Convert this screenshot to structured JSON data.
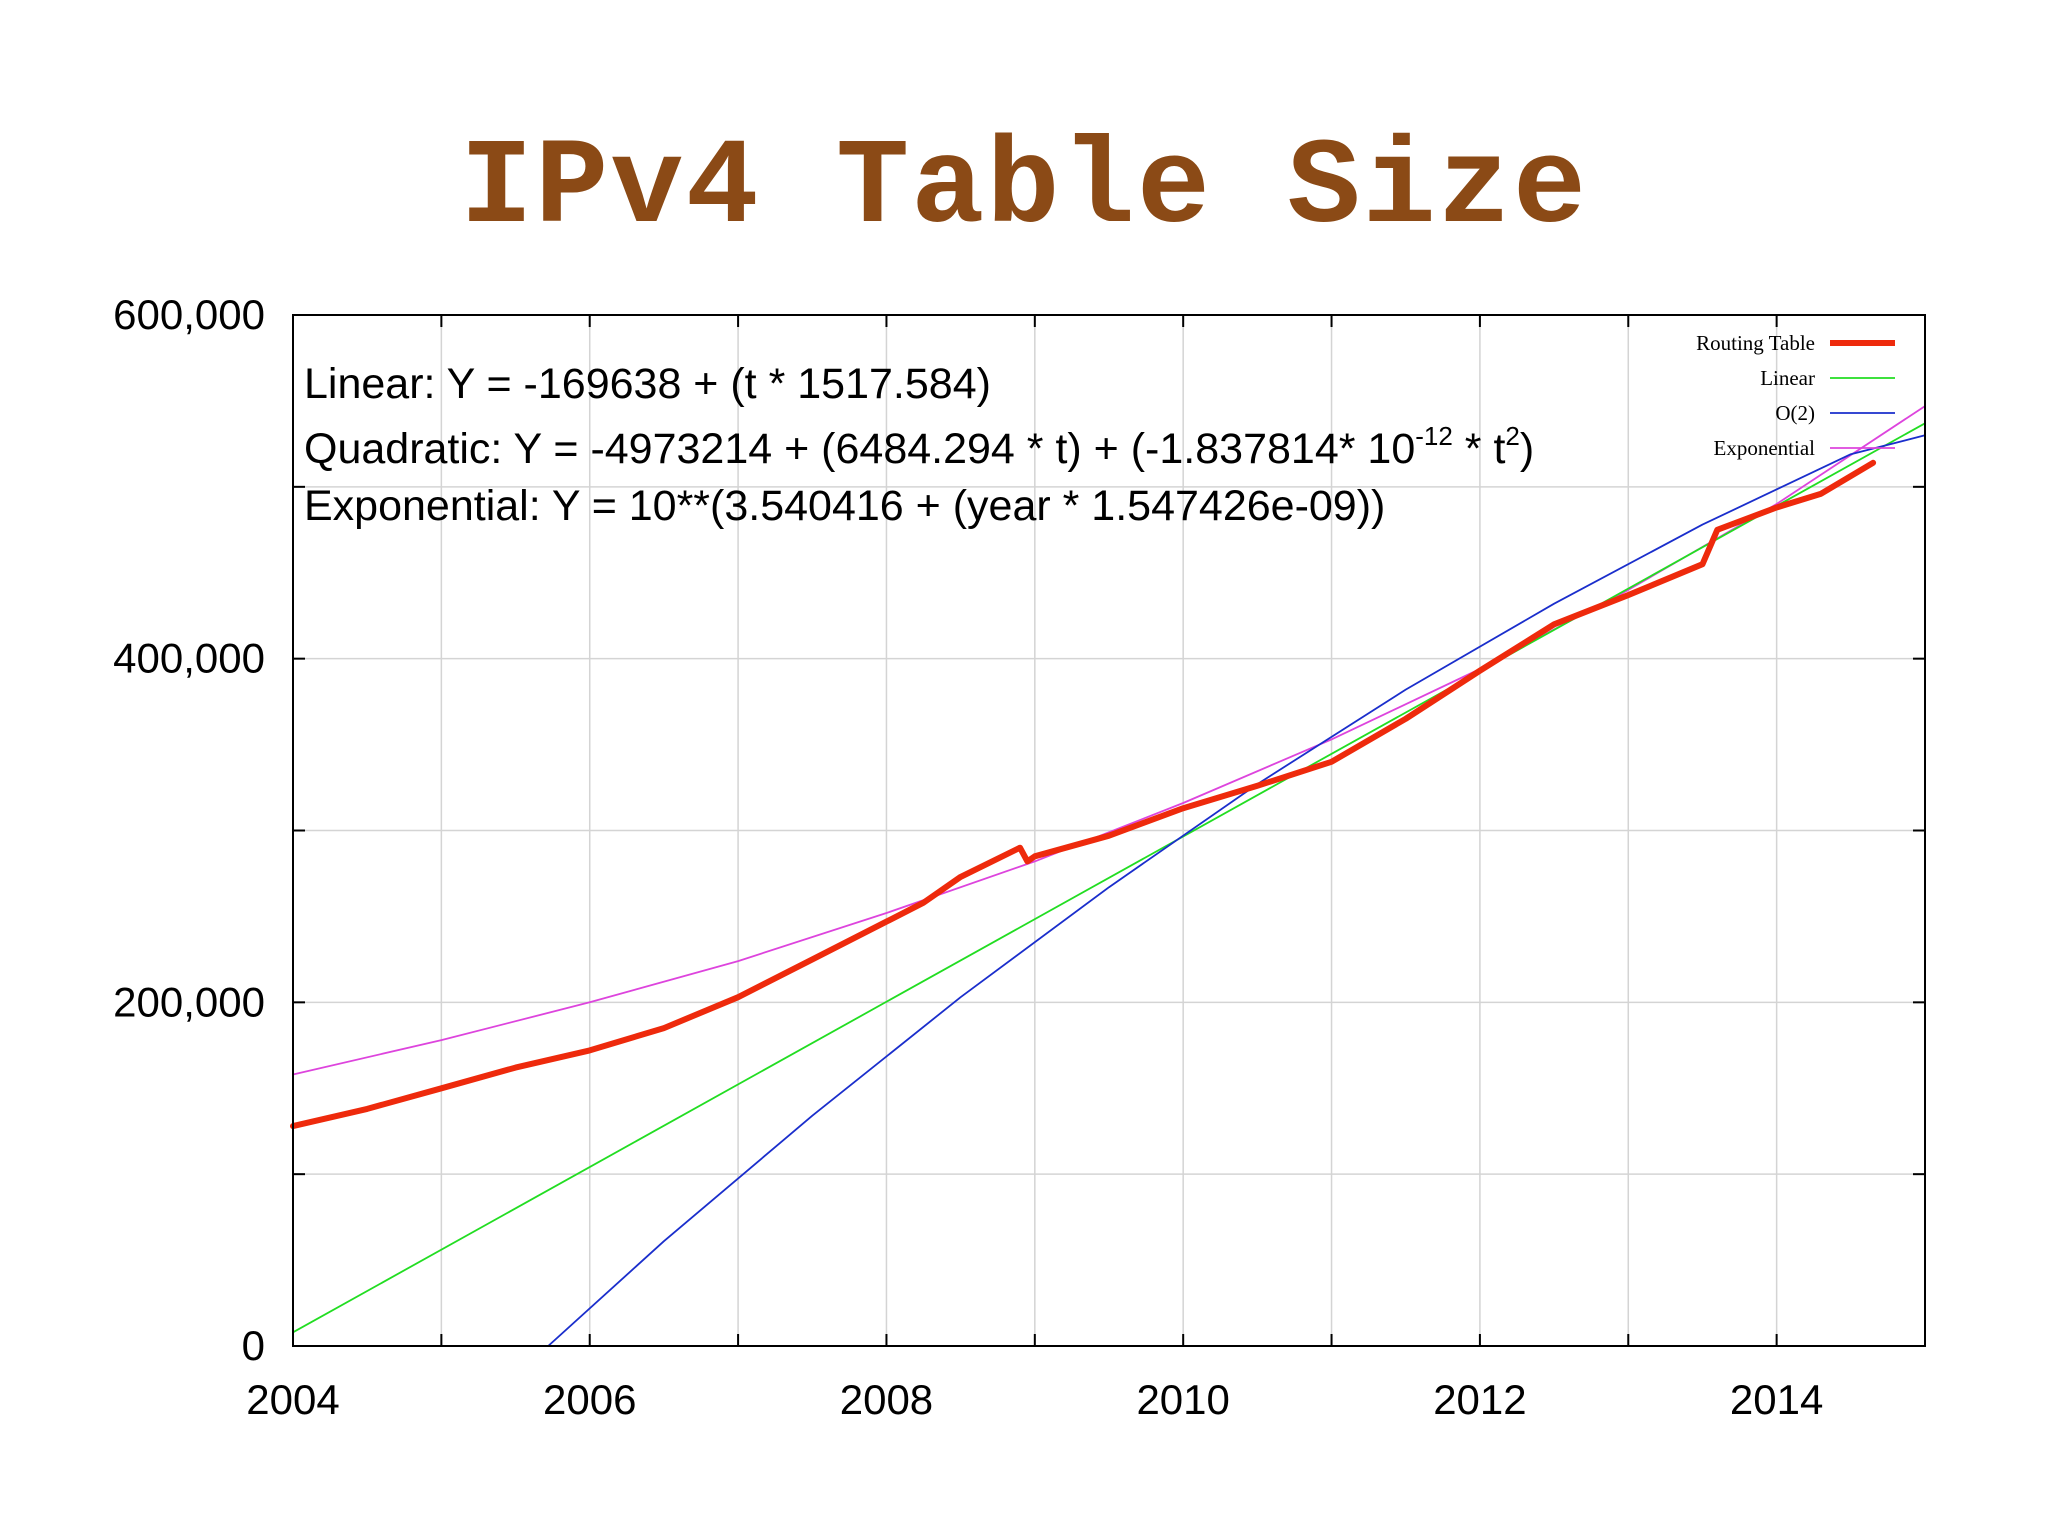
{
  "slide": {
    "title": "IPv4 Table Size"
  },
  "equations": {
    "linear": "Linear: Y = -169638 + (t * 1517.584)",
    "quadratic_main": "Quadratic: Y  = -4973214 + (6484.294 * t) + (-1.837814* 10",
    "quadratic_exp": "-12",
    "quadratic_mid": " * t",
    "quadratic_exp2": "2",
    "quadratic_end": ")",
    "exponential": "Exponential: Y = 10**(3.540416 + (year * 1.547426e-09))"
  },
  "chart_data": {
    "type": "line",
    "title": "IPv4 Table Size",
    "xlim": [
      2004,
      2015
    ],
    "ylim": [
      0,
      600000
    ],
    "x_ticks": [
      2004,
      2006,
      2008,
      2010,
      2012,
      2014
    ],
    "x_tick_labels": [
      "2004",
      "2006",
      "2008",
      "2010",
      "2012",
      "2014"
    ],
    "y_ticks": [
      0,
      200000,
      400000,
      600000
    ],
    "y_tick_labels": [
      "0",
      "200,000",
      "400,000",
      "600,000"
    ],
    "grid": true,
    "legend_position": "top-right",
    "series": [
      {
        "name": "Routing Table",
        "color": "#ee2a0c",
        "x": [
          2004.0,
          2004.5,
          2005.0,
          2005.5,
          2006.0,
          2006.5,
          2007.0,
          2007.5,
          2008.0,
          2008.25,
          2008.5,
          2008.9,
          2008.95,
          2009.0,
          2009.5,
          2010.0,
          2010.5,
          2011.0,
          2011.5,
          2012.0,
          2012.5,
          2013.0,
          2013.5,
          2013.6,
          2014.0,
          2014.3,
          2014.65
        ],
        "y": [
          128000,
          138000,
          150000,
          162000,
          172000,
          185000,
          203000,
          225000,
          247000,
          258000,
          273000,
          290000,
          282000,
          285000,
          297000,
          313000,
          326000,
          340000,
          365000,
          393000,
          420000,
          437000,
          455000,
          475000,
          488000,
          496000,
          514000
        ]
      },
      {
        "name": "Linear",
        "color": "#22dd22",
        "x": [
          2004,
          2015
        ],
        "y": [
          8000,
          537000
        ]
      },
      {
        "name": "O(2)",
        "color": "#1a2ecc",
        "x": [
          2005.72,
          2006.5,
          2007.5,
          2008.5,
          2009.5,
          2010.5,
          2011.5,
          2012.5,
          2013.5,
          2014.5,
          2015
        ],
        "y": [
          0,
          61000,
          134000,
          203000,
          267000,
          327000,
          382000,
          432000,
          478000,
          519000,
          530000
        ]
      },
      {
        "name": "Exponential",
        "color": "#dd44dd",
        "x": [
          2004,
          2005,
          2006,
          2007,
          2008,
          2009,
          2010,
          2011,
          2012,
          2013,
          2014,
          2015
        ],
        "y": [
          158000,
          178000,
          200000,
          224000,
          252000,
          282000,
          316000,
          353000,
          394000,
          440000,
          490000,
          547000
        ]
      }
    ]
  }
}
